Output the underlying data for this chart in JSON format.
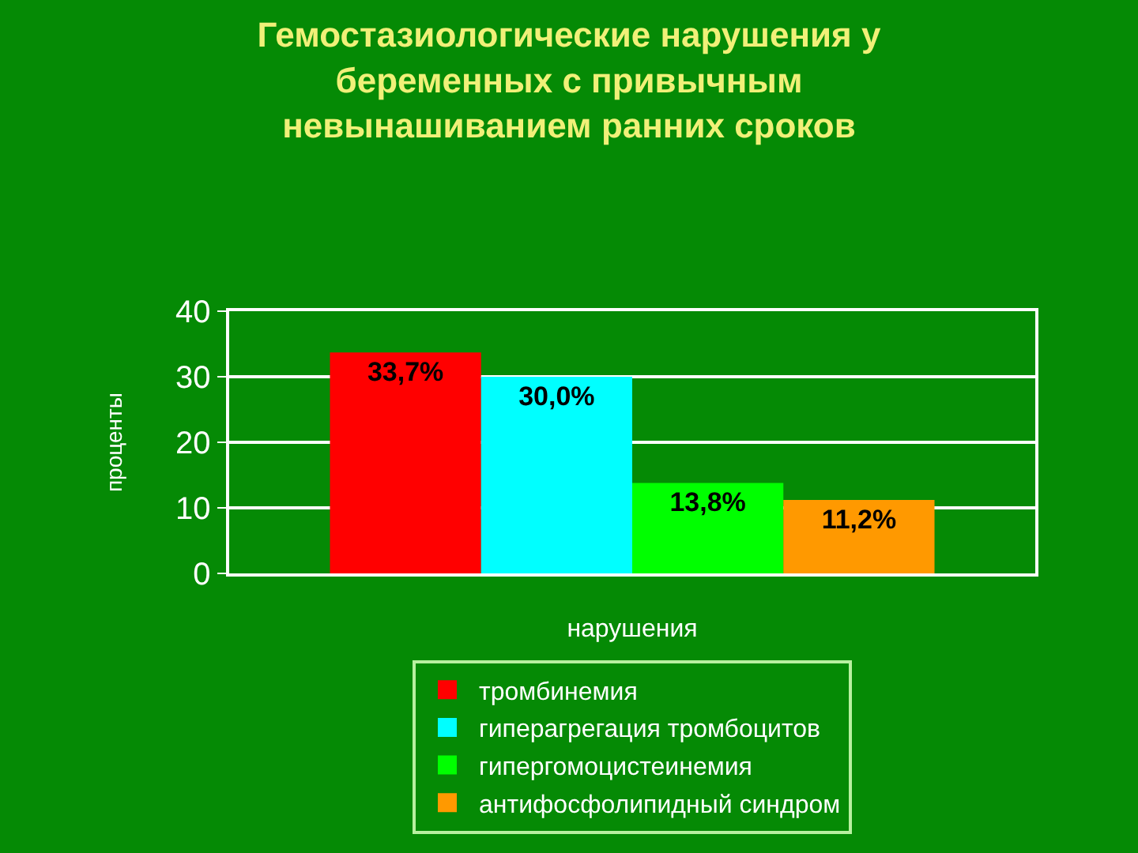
{
  "chart_data": {
    "type": "bar",
    "title": "Гемостазиологические нарушения у\nбеременных с привычным\nневынашиванием ранних сроков",
    "xlabel": "нарушения",
    "ylabel": "проценты",
    "categories": [
      null
    ],
    "series": [
      {
        "name": "тромбинемия",
        "color": "#ff0000",
        "values": [
          33.7
        ],
        "value_labels": [
          "33,7%"
        ]
      },
      {
        "name": "гиперагрегация тромбоцитов",
        "color": "#00ffff",
        "values": [
          30.0
        ],
        "value_labels": [
          "30,0%"
        ]
      },
      {
        "name": "гипергомоцистеинемия",
        "color": "#00ff00",
        "values": [
          13.8
        ],
        "value_labels": [
          "13,8%"
        ]
      },
      {
        "name": "антифосфолипидный синдром",
        "color": "#ff9900",
        "values": [
          11.2
        ],
        "value_labels": [
          "11,2%"
        ]
      }
    ],
    "ylim": [
      0,
      40
    ],
    "yticks": [
      0,
      10,
      20,
      30,
      40
    ],
    "grid": "y",
    "legend": "bottom"
  }
}
